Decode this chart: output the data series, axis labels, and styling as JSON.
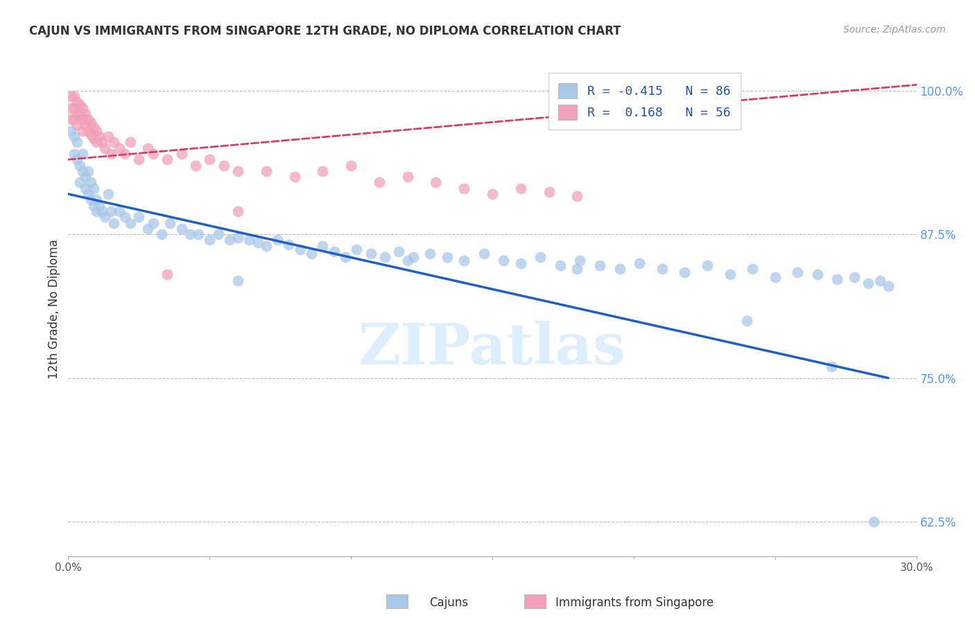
{
  "title": "CAJUN VS IMMIGRANTS FROM SINGAPORE 12TH GRADE, NO DIPLOMA CORRELATION CHART",
  "source": "Source: ZipAtlas.com",
  "ylabel": "12th Grade, No Diploma",
  "xmin": 0.0,
  "xmax": 0.3,
  "ymin": 0.595,
  "ymax": 1.025,
  "yticks": [
    0.625,
    0.75,
    0.875,
    1.0
  ],
  "ytick_labels": [
    "62.5%",
    "75.0%",
    "87.5%",
    "100.0%"
  ],
  "xticks": [
    0.0,
    0.05,
    0.1,
    0.15,
    0.2,
    0.25,
    0.3
  ],
  "xtick_labels": [
    "0.0%",
    "",
    "",
    "",
    "",
    "",
    "30.0%"
  ],
  "legend_r_cajun": "-0.415",
  "legend_n_cajun": "86",
  "legend_r_singapore": "0.168",
  "legend_n_singapore": "56",
  "cajun_color": "#a8c8e8",
  "singapore_color": "#f0a0b8",
  "trend_cajun_color": "#2060c0",
  "trend_singapore_color": "#d04060",
  "watermark": "ZIPatlas",
  "cajun_scatter_x": [
    0.001,
    0.002,
    0.002,
    0.003,
    0.003,
    0.004,
    0.004,
    0.005,
    0.005,
    0.006,
    0.006,
    0.007,
    0.007,
    0.008,
    0.008,
    0.009,
    0.009,
    0.01,
    0.01,
    0.011,
    0.012,
    0.013,
    0.014,
    0.015,
    0.016,
    0.018,
    0.02,
    0.022,
    0.025,
    0.028,
    0.03,
    0.033,
    0.036,
    0.04,
    0.043,
    0.046,
    0.05,
    0.053,
    0.057,
    0.06,
    0.064,
    0.067,
    0.07,
    0.074,
    0.078,
    0.082,
    0.086,
    0.09,
    0.094,
    0.098,
    0.102,
    0.107,
    0.112,
    0.117,
    0.122,
    0.128,
    0.134,
    0.14,
    0.147,
    0.154,
    0.16,
    0.167,
    0.174,
    0.181,
    0.188,
    0.195,
    0.202,
    0.21,
    0.218,
    0.226,
    0.234,
    0.242,
    0.25,
    0.258,
    0.265,
    0.272,
    0.278,
    0.283,
    0.287,
    0.29,
    0.06,
    0.12,
    0.18,
    0.24,
    0.27,
    0.285
  ],
  "cajun_scatter_y": [
    0.965,
    0.96,
    0.945,
    0.955,
    0.94,
    0.935,
    0.92,
    0.945,
    0.93,
    0.925,
    0.915,
    0.93,
    0.91,
    0.92,
    0.905,
    0.915,
    0.9,
    0.905,
    0.895,
    0.9,
    0.895,
    0.89,
    0.91,
    0.895,
    0.885,
    0.895,
    0.89,
    0.885,
    0.89,
    0.88,
    0.885,
    0.875,
    0.885,
    0.88,
    0.875,
    0.875,
    0.87,
    0.875,
    0.87,
    0.872,
    0.87,
    0.868,
    0.865,
    0.87,
    0.866,
    0.862,
    0.858,
    0.865,
    0.86,
    0.855,
    0.862,
    0.858,
    0.855,
    0.86,
    0.855,
    0.858,
    0.855,
    0.852,
    0.858,
    0.852,
    0.85,
    0.855,
    0.848,
    0.852,
    0.848,
    0.845,
    0.85,
    0.845,
    0.842,
    0.848,
    0.84,
    0.845,
    0.838,
    0.842,
    0.84,
    0.836,
    0.838,
    0.832,
    0.835,
    0.83,
    0.835,
    0.852,
    0.845,
    0.8,
    0.76,
    0.625
  ],
  "singapore_scatter_x": [
    0.001,
    0.001,
    0.001,
    0.002,
    0.002,
    0.002,
    0.003,
    0.003,
    0.003,
    0.004,
    0.004,
    0.005,
    0.005,
    0.005,
    0.006,
    0.006,
    0.007,
    0.007,
    0.008,
    0.008,
    0.009,
    0.009,
    0.01,
    0.01,
    0.011,
    0.012,
    0.013,
    0.014,
    0.015,
    0.016,
    0.018,
    0.02,
    0.022,
    0.025,
    0.028,
    0.03,
    0.035,
    0.04,
    0.045,
    0.05,
    0.055,
    0.06,
    0.07,
    0.08,
    0.09,
    0.1,
    0.11,
    0.12,
    0.13,
    0.14,
    0.15,
    0.16,
    0.17,
    0.18,
    0.06,
    0.035
  ],
  "singapore_scatter_y": [
    0.995,
    0.985,
    0.975,
    0.995,
    0.985,
    0.975,
    0.99,
    0.98,
    0.97,
    0.988,
    0.978,
    0.985,
    0.975,
    0.965,
    0.98,
    0.97,
    0.975,
    0.965,
    0.972,
    0.962,
    0.968,
    0.958,
    0.965,
    0.955,
    0.96,
    0.955,
    0.95,
    0.96,
    0.945,
    0.955,
    0.95,
    0.945,
    0.955,
    0.94,
    0.95,
    0.945,
    0.94,
    0.945,
    0.935,
    0.94,
    0.935,
    0.93,
    0.93,
    0.925,
    0.93,
    0.935,
    0.92,
    0.925,
    0.92,
    0.915,
    0.91,
    0.915,
    0.912,
    0.908,
    0.895,
    0.84
  ],
  "cajun_trend_x": [
    0.0,
    0.29
  ],
  "cajun_trend_y": [
    0.91,
    0.75
  ],
  "singapore_trend_x": [
    0.0,
    0.3
  ],
  "singapore_trend_y": [
    0.94,
    1.005
  ]
}
